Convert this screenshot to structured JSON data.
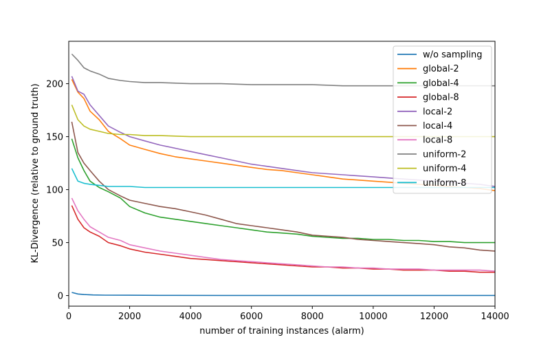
{
  "chart_data": {
    "type": "line",
    "title": "",
    "xlabel": "number of training instances (alarm)",
    "ylabel": "KL-Divergence (relative to ground truth)",
    "xlim": [
      0,
      14000
    ],
    "ylim": [
      -10,
      240
    ],
    "xticks": [
      0,
      2000,
      4000,
      6000,
      8000,
      10000,
      12000,
      14000
    ],
    "yticks": [
      0,
      50,
      100,
      150,
      200
    ],
    "grid": false,
    "legend_position": "top-right",
    "series": [
      {
        "name": "w/o sampling",
        "color": "#1f77b4",
        "x": [
          100,
          300,
          500,
          800,
          1200,
          2000,
          3000,
          5000,
          8000,
          10000,
          12000,
          14000
        ],
        "y": [
          3,
          1.5,
          1,
          0.6,
          0.4,
          0.3,
          0.2,
          0.1,
          0.1,
          0.1,
          0.1,
          0.1
        ]
      },
      {
        "name": "global-2",
        "color": "#ff7f0e",
        "x": [
          100,
          300,
          500,
          700,
          1000,
          1300,
          1700,
          2000,
          2500,
          3000,
          3500,
          4000,
          4500,
          5000,
          5500,
          6000,
          6500,
          7000,
          7500,
          8000,
          8500,
          9000,
          9500,
          10000,
          10500,
          11000,
          11500,
          12000,
          12500,
          13000,
          13500,
          14000
        ],
        "y": [
          204,
          192,
          186,
          174,
          166,
          155,
          148,
          142,
          138,
          134,
          131,
          129,
          127,
          125,
          123,
          121,
          119,
          118,
          116,
          114,
          112,
          110,
          109,
          108,
          107,
          106,
          105,
          104,
          103,
          102,
          101,
          99
        ]
      },
      {
        "name": "global-4",
        "color": "#2ca02c",
        "x": [
          100,
          300,
          500,
          700,
          1000,
          1300,
          1700,
          2000,
          2500,
          3000,
          3500,
          4000,
          4500,
          5000,
          5500,
          6000,
          6500,
          7000,
          7500,
          8000,
          8500,
          9000,
          9500,
          10000,
          10500,
          11000,
          11500,
          12000,
          12500,
          13000,
          13500,
          14000
        ],
        "y": [
          148,
          130,
          118,
          108,
          102,
          98,
          92,
          84,
          78,
          74,
          72,
          70,
          68,
          66,
          64,
          62,
          60,
          59,
          58,
          56,
          55,
          54,
          54,
          53,
          53,
          52,
          52,
          51,
          51,
          50,
          50,
          50
        ]
      },
      {
        "name": "global-8",
        "color": "#d62728",
        "x": [
          100,
          300,
          500,
          700,
          1000,
          1300,
          1700,
          2000,
          2500,
          3000,
          3500,
          4000,
          4500,
          5000,
          5500,
          6000,
          6500,
          7000,
          7500,
          8000,
          8500,
          9000,
          9500,
          10000,
          10500,
          11000,
          11500,
          12000,
          12500,
          13000,
          13500,
          14000
        ],
        "y": [
          85,
          72,
          64,
          60,
          56,
          50,
          47,
          44,
          41,
          39,
          37,
          35,
          34,
          33,
          32,
          31,
          30,
          29,
          28,
          27,
          27,
          26,
          26,
          25,
          25,
          24,
          24,
          24,
          23,
          23,
          22,
          22
        ]
      },
      {
        "name": "local-2",
        "color": "#9467bd",
        "x": [
          100,
          300,
          500,
          700,
          1000,
          1300,
          1700,
          2000,
          2500,
          3000,
          3500,
          4000,
          4500,
          5000,
          5500,
          6000,
          6500,
          7000,
          7500,
          8000,
          8500,
          9000,
          9500,
          10000,
          10500,
          11000,
          11500,
          12000,
          12500,
          13000,
          13500,
          14000
        ],
        "y": [
          207,
          193,
          190,
          180,
          170,
          160,
          154,
          150,
          146,
          142,
          139,
          136,
          133,
          130,
          127,
          124,
          122,
          120,
          118,
          116,
          115,
          114,
          113,
          112,
          111,
          110,
          109,
          108,
          107,
          106,
          105,
          103
        ]
      },
      {
        "name": "local-4",
        "color": "#8c564b",
        "x": [
          100,
          300,
          500,
          700,
          1000,
          1300,
          1700,
          2000,
          2500,
          3000,
          3500,
          4000,
          4500,
          5000,
          5500,
          6000,
          6500,
          7000,
          7500,
          8000,
          8500,
          9000,
          9500,
          10000,
          10500,
          11000,
          11500,
          12000,
          12500,
          13000,
          13500,
          14000
        ],
        "y": [
          164,
          135,
          125,
          118,
          108,
          100,
          94,
          90,
          87,
          84,
          82,
          79,
          76,
          72,
          68,
          66,
          64,
          62,
          60,
          57,
          56,
          55,
          53,
          52,
          51,
          50,
          49,
          48,
          46,
          45,
          43,
          42
        ]
      },
      {
        "name": "local-8",
        "color": "#e377c2",
        "x": [
          100,
          300,
          500,
          700,
          1000,
          1300,
          1700,
          2000,
          2500,
          3000,
          3500,
          4000,
          4500,
          5000,
          5500,
          6000,
          6500,
          7000,
          7500,
          8000,
          8500,
          9000,
          9500,
          10000,
          10500,
          11000,
          11500,
          12000,
          12500,
          13000,
          13500,
          14000
        ],
        "y": [
          92,
          80,
          72,
          65,
          60,
          55,
          52,
          48,
          45,
          42,
          40,
          38,
          36,
          34,
          33,
          32,
          31,
          30,
          29,
          28,
          27,
          27,
          26,
          26,
          25,
          25,
          25,
          24,
          24,
          24,
          24,
          23
        ]
      },
      {
        "name": "uniform-2",
        "color": "#7f7f7f",
        "x": [
          100,
          300,
          500,
          700,
          1000,
          1300,
          1700,
          2000,
          2500,
          3000,
          4000,
          5000,
          6000,
          7000,
          8000,
          9000,
          10000,
          11000,
          12000,
          13000,
          14000
        ],
        "y": [
          228,
          222,
          215,
          212,
          209,
          205,
          203,
          202,
          201,
          201,
          200,
          200,
          199,
          199,
          199,
          198,
          198,
          198,
          198,
          198,
          198
        ]
      },
      {
        "name": "uniform-4",
        "color": "#bcbd22",
        "x": [
          100,
          300,
          500,
          700,
          1000,
          1300,
          1700,
          2000,
          2500,
          3000,
          4000,
          5000,
          6000,
          7000,
          8000,
          9000,
          10000,
          11000,
          12000,
          13000,
          14000
        ],
        "y": [
          180,
          166,
          160,
          157,
          155,
          153,
          152,
          152,
          151,
          151,
          150,
          150,
          150,
          150,
          150,
          150,
          150,
          150,
          150,
          150,
          150
        ]
      },
      {
        "name": "uniform-8",
        "color": "#17becf",
        "x": [
          100,
          300,
          500,
          700,
          1000,
          1300,
          1700,
          2000,
          2500,
          3000,
          4000,
          5000,
          6000,
          7000,
          8000,
          9000,
          10000,
          11000,
          12000,
          13000,
          14000
        ],
        "y": [
          120,
          108,
          106,
          105,
          104,
          103,
          103,
          103,
          102,
          102,
          102,
          102,
          102,
          102,
          102,
          102,
          102,
          102,
          102,
          102,
          102
        ]
      }
    ]
  }
}
